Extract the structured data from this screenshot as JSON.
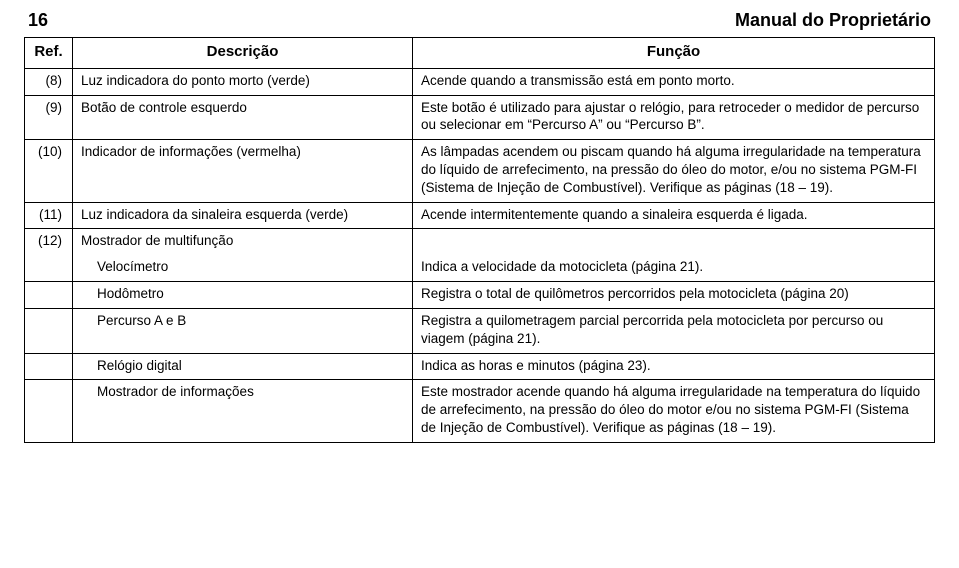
{
  "page_number": "16",
  "manual_title": "Manual do Proprietário",
  "headers": {
    "ref": "Ref.",
    "desc": "Descrição",
    "func": "Função"
  },
  "rows": [
    {
      "ref": "(8)",
      "desc": "Luz indicadora do ponto morto (verde)",
      "func": "Acende quando a transmissão está em ponto morto."
    },
    {
      "ref": "(9)",
      "desc": "Botão de controle esquerdo",
      "func": "Este botão é utilizado para ajustar o relógio, para retroceder o medidor de percurso ou selecionar em “Percurso A” ou “Percurso B”."
    },
    {
      "ref": "(10)",
      "desc": "Indicador de informações (vermelha)",
      "func": "As lâmpadas acendem ou piscam quando há alguma irregularidade na temperatura do líquido de arrefecimento, na pressão do óleo do motor, e/ou no sistema PGM-FI (Sistema de Injeção de Combustível). Verifique as páginas (18 – 19)."
    },
    {
      "ref": "(11)",
      "desc": "Luz indicadora da sinaleira esquerda (verde)",
      "func": "Acende intermitentemente quando a sinaleira esquerda é ligada."
    },
    {
      "ref": "(12)",
      "desc": "Mostrador de multifunção",
      "func": ""
    }
  ],
  "subrows": [
    {
      "desc": "Velocímetro",
      "func": "Indica a velocidade da motocicleta (página 21)."
    },
    {
      "desc": "Hodômetro",
      "func": "Registra o total de quilômetros percorridos pela motocicleta (página 20)"
    },
    {
      "desc": "Percurso A e B",
      "func": "Registra a quilometragem parcial percorrida pela motocicleta por percurso ou viagem (página 21)."
    },
    {
      "desc": "Relógio digital",
      "func": "Indica as horas e minutos (página 23)."
    },
    {
      "desc": "Mostrador de informações",
      "func": "Este mostrador acende quando há alguma irregularidade na temperatura do líquido de arrefecimento, na pressão do óleo do motor e/ou no sistema PGM-FI (Sistema de Injeção de Combustível). Verifique as páginas (18 – 19)."
    }
  ]
}
